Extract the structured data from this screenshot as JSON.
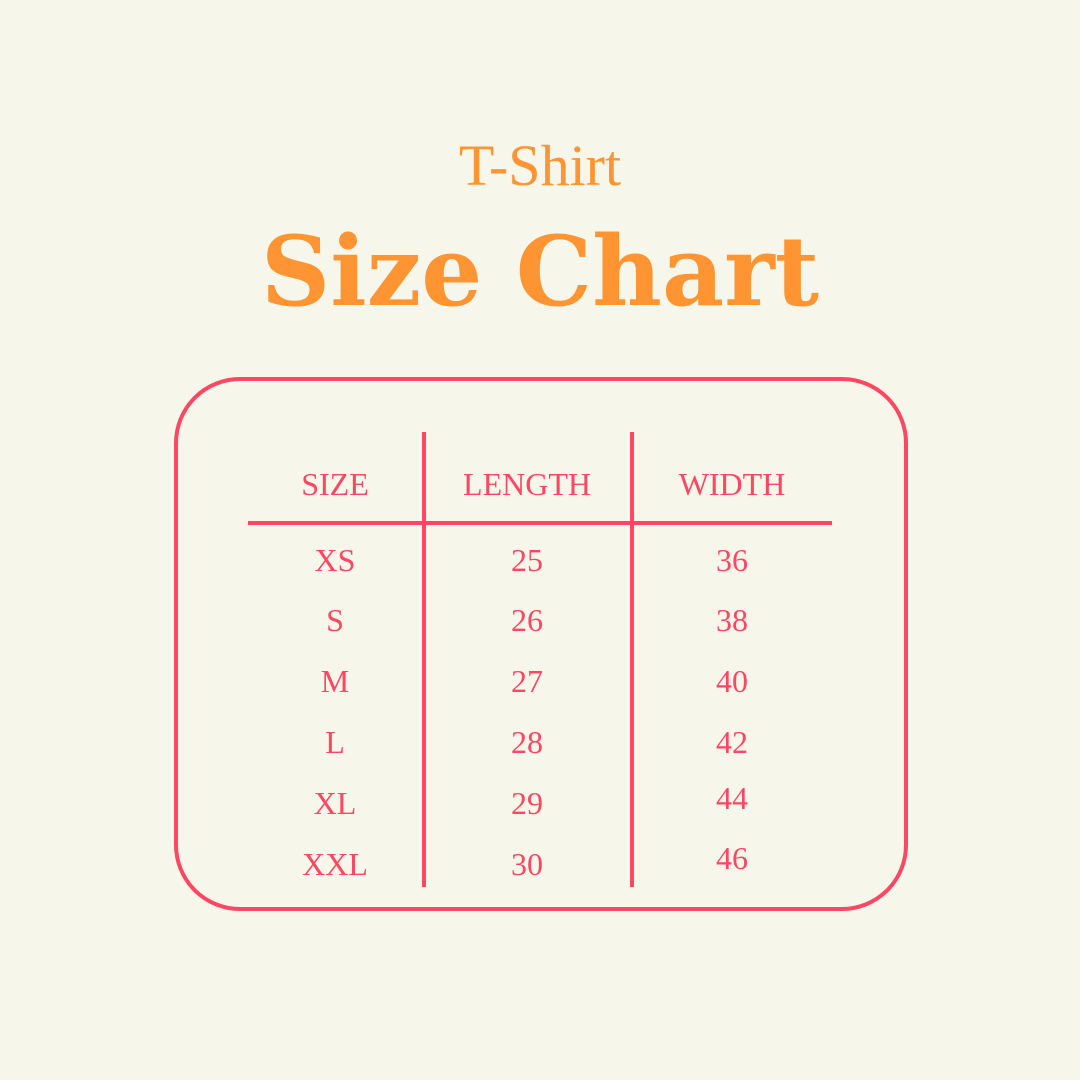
{
  "subtitle": "T-Shirt",
  "title": "Size Chart",
  "colors": {
    "background": "#f6f6ea",
    "title": "#ff9432",
    "table": "#ff4662"
  },
  "table": {
    "headers": [
      "SIZE",
      "LENGTH",
      "WIDTH"
    ],
    "rows": [
      [
        "XS",
        "25",
        "36"
      ],
      [
        "S",
        "26",
        "38"
      ],
      [
        "M",
        "27",
        "40"
      ],
      [
        "L",
        "28",
        "42"
      ],
      [
        "XL",
        "29",
        "44"
      ],
      [
        "XXL",
        "30",
        "46"
      ]
    ]
  }
}
